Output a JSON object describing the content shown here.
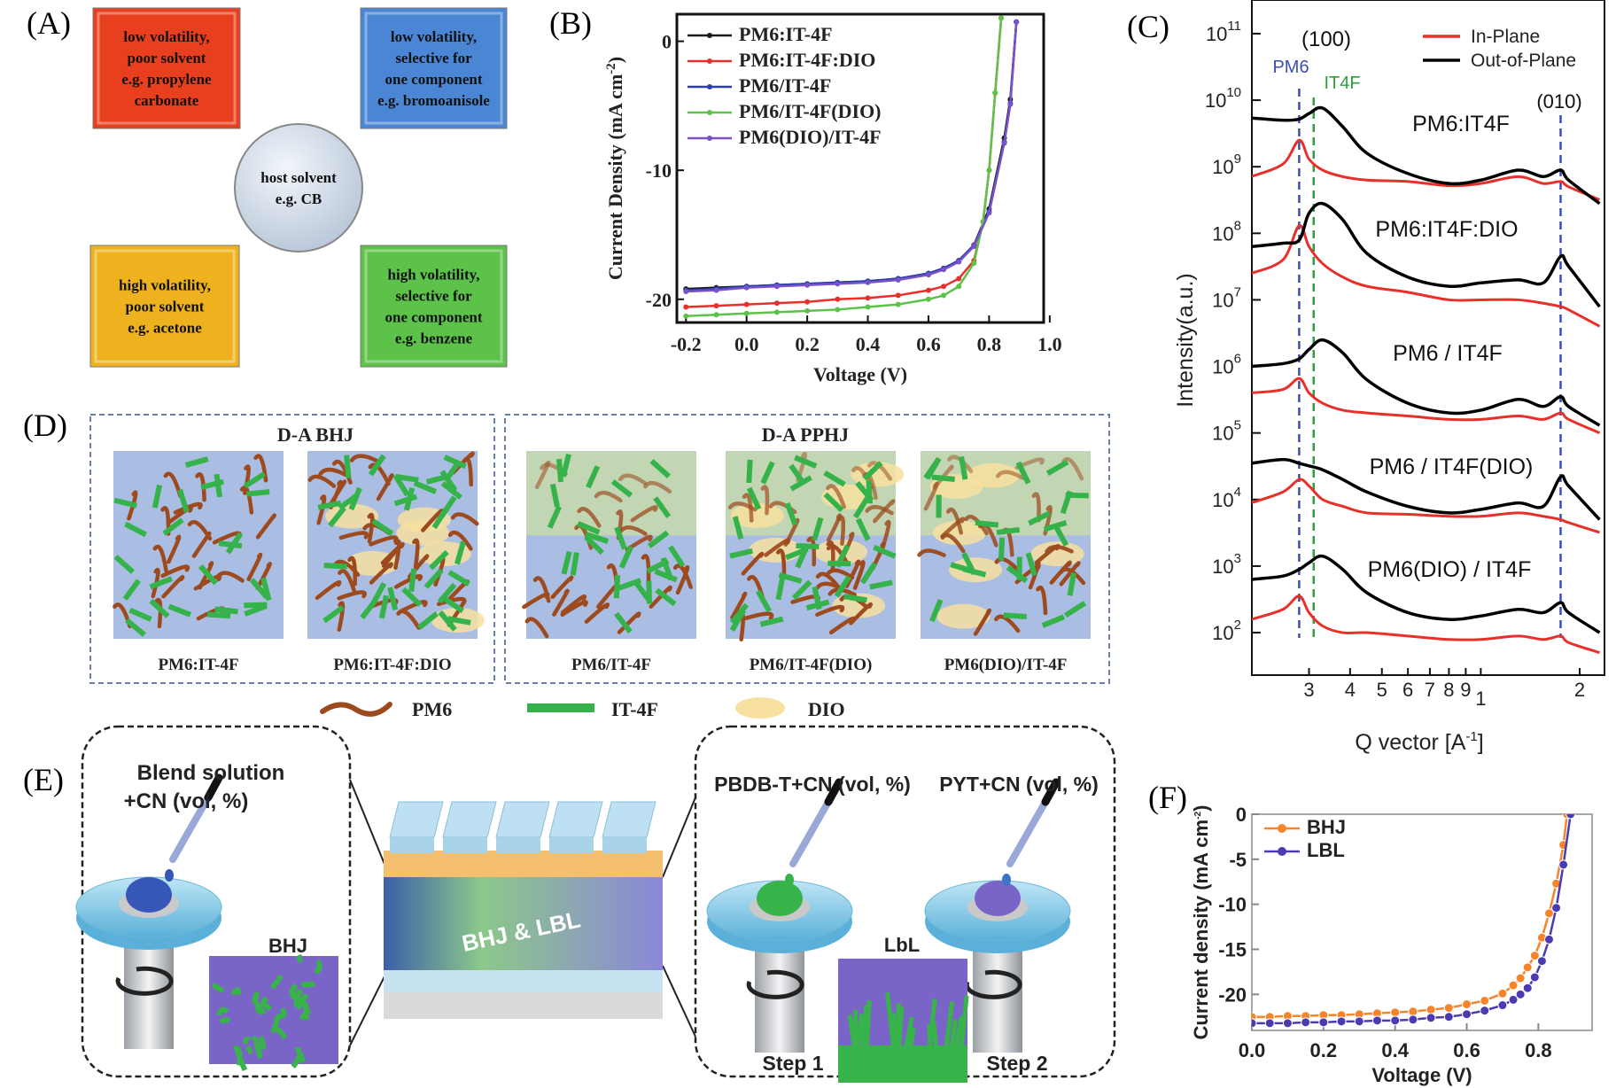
{
  "panels": {
    "a": "(A)",
    "b": "(B)",
    "c": "(C)",
    "d": "(D)",
    "e": "(E)",
    "f": "(F)"
  },
  "panel_a": {
    "boxes": [
      {
        "lines": [
          "low volatility,",
          "poor solvent",
          "e.g. propylene",
          "carbonate"
        ],
        "color": "#e8401e"
      },
      {
        "lines": [
          "low volatility,",
          "selective for",
          "one component",
          "e.g. bromoanisole"
        ],
        "color": "#4a86d4"
      },
      {
        "lines": [
          "high volatility,",
          "poor solvent",
          "e.g. acetone"
        ],
        "color": "#eeb21e"
      },
      {
        "lines": [
          "high volatility,",
          "selective for",
          "one component",
          "e.g. benzene"
        ],
        "color": "#5cc24a"
      }
    ],
    "center": {
      "lines": [
        "host solvent",
        "e.g. CB"
      ]
    }
  },
  "chart_data": [
    {
      "id": "B",
      "type": "line",
      "xlabel": "Voltage (V)",
      "ylabel": "Current Density (mA cm",
      "ylabel_sup": "-2",
      "ylabel_end": ")",
      "xlim": [
        -0.23,
        0.98
      ],
      "ylim": [
        -21.8,
        2.1
      ],
      "xticks": [
        -0.2,
        0.0,
        0.2,
        0.4,
        0.6,
        0.8,
        1.0
      ],
      "xtick_labels": [
        "-0.2",
        "0.0",
        "0.2",
        "0.4",
        "0.6",
        "0.8",
        "1.0"
      ],
      "yticks": [
        0,
        -10,
        -20
      ],
      "ytick_labels": [
        "0",
        "-10",
        "-20"
      ],
      "legend": "top-left",
      "series": [
        {
          "name": "PM6:IT-4F",
          "color": "#1a1a1a",
          "x": [
            -0.2,
            -0.1,
            0,
            0.1,
            0.2,
            0.3,
            0.4,
            0.5,
            0.6,
            0.65,
            0.7,
            0.75,
            0.8,
            0.85,
            0.87,
            0.89
          ],
          "y": [
            -19.2,
            -19.1,
            -19.0,
            -18.9,
            -18.8,
            -18.7,
            -18.6,
            -18.4,
            -18.0,
            -17.6,
            -17.0,
            -15.8,
            -13.0,
            -7.5,
            -4.5,
            1.5
          ]
        },
        {
          "name": "PM6:IT-4F:DIO",
          "color": "#e8302a",
          "x": [
            -0.2,
            -0.1,
            0,
            0.1,
            0.2,
            0.3,
            0.4,
            0.5,
            0.6,
            0.65,
            0.7,
            0.75,
            0.78,
            0.8,
            0.82,
            0.84
          ],
          "y": [
            -20.6,
            -20.5,
            -20.4,
            -20.3,
            -20.2,
            -20.0,
            -19.9,
            -19.7,
            -19.3,
            -19.0,
            -18.4,
            -17.0,
            -14.0,
            -10.0,
            -4.0,
            1.8
          ]
        },
        {
          "name": "PM6/IT-4F",
          "color": "#2b3fb0",
          "x": [
            -0.2,
            -0.1,
            0,
            0.1,
            0.2,
            0.3,
            0.4,
            0.5,
            0.6,
            0.65,
            0.7,
            0.75,
            0.8,
            0.85,
            0.87,
            0.89
          ],
          "y": [
            -19.3,
            -19.2,
            -19.0,
            -18.9,
            -18.8,
            -18.7,
            -18.6,
            -18.4,
            -18.0,
            -17.6,
            -17.0,
            -15.8,
            -13.2,
            -7.8,
            -4.8,
            1.5
          ]
        },
        {
          "name": "PM6/IT-4F(DIO)",
          "color": "#5cc24a",
          "x": [
            -0.2,
            -0.1,
            0,
            0.1,
            0.2,
            0.3,
            0.4,
            0.5,
            0.6,
            0.65,
            0.7,
            0.75,
            0.78,
            0.8,
            0.82,
            0.84
          ],
          "y": [
            -21.3,
            -21.2,
            -21.1,
            -21.0,
            -20.9,
            -20.8,
            -20.6,
            -20.4,
            -20.0,
            -19.7,
            -19.0,
            -17.2,
            -14.0,
            -10.0,
            -4.0,
            1.8
          ]
        },
        {
          "name": "PM6(DIO)/IT-4F",
          "color": "#7a52c8",
          "x": [
            -0.2,
            -0.1,
            0,
            0.1,
            0.2,
            0.3,
            0.4,
            0.5,
            0.6,
            0.65,
            0.7,
            0.75,
            0.8,
            0.85,
            0.87,
            0.89
          ],
          "y": [
            -19.4,
            -19.3,
            -19.1,
            -19.0,
            -18.9,
            -18.8,
            -18.7,
            -18.5,
            -18.1,
            -17.7,
            -17.1,
            -15.9,
            -13.3,
            -7.9,
            -4.9,
            1.5
          ]
        }
      ]
    },
    {
      "id": "C",
      "type": "line",
      "xlabel": "Q vector [A",
      "xlabel_sup": "-1",
      "xlabel_end": "]",
      "ylabel": "Intensity(a.u.)",
      "xscale": "log",
      "yscale": "log",
      "xlim": [
        0.201,
        2.38
      ],
      "ylim": [
        23,
        320000000000.0
      ],
      "xticks": [
        0.3,
        0.4,
        0.5,
        0.6,
        0.7,
        0.8,
        0.9,
        1,
        2
      ],
      "xtick_labels": [
        "3",
        "4",
        "5",
        "6",
        "7",
        "8",
        "9",
        "1",
        "2"
      ],
      "yticks": [
        100.0,
        1000.0,
        10000.0,
        100000.0,
        1000000.0,
        10000000.0,
        100000000.0,
        1000000000.0,
        10000000000.0,
        100000000000.0
      ],
      "ytick_base": "10",
      "ytick_exponents": [
        "2",
        "3",
        "4",
        "5",
        "6",
        "7",
        "8",
        "9",
        "10",
        "11"
      ],
      "legend": "top-right",
      "legend_entries": [
        {
          "name": "In-Plane",
          "color": "#e8302a"
        },
        {
          "name": "Out-of-Plane",
          "color": "#000000"
        }
      ],
      "annotations": [
        {
          "text": "(100)",
          "color": "#111111"
        },
        {
          "text": "PM6",
          "color": "#3b4fb0",
          "q": 0.28
        },
        {
          "text": "IT4F",
          "color": "#2e9e3e",
          "q": 0.31
        },
        {
          "text": "(010)",
          "color": "#111111",
          "q": 1.75
        }
      ],
      "q": [
        0.2,
        0.25,
        0.28,
        0.3,
        0.33,
        0.38,
        0.45,
        0.6,
        0.8,
        1.0,
        1.3,
        1.55,
        1.75,
        1.85,
        2.3
      ],
      "samples": [
        {
          "name": "PM6:IT4F",
          "out_of_plane": [
            5400000000.0,
            5000000000.0,
            5200000000.0,
            6300000000.0,
            7600000000.0,
            4000000000.0,
            1600000000.0,
            790000000.0,
            560000000.0,
            630000000.0,
            890000000.0,
            710000000.0,
            890000000.0,
            630000000.0,
            280000000.0
          ],
          "in_plane": [
            710000000.0,
            1100000000.0,
            2500000000.0,
            1300000000.0,
            890000000.0,
            710000000.0,
            630000000.0,
            600000000.0,
            520000000.0,
            560000000.0,
            710000000.0,
            560000000.0,
            600000000.0,
            500000000.0,
            320000000.0
          ]
        },
        {
          "name": "PM6:IT4F:DIO",
          "out_of_plane": [
            63000000.0,
            71000000.0,
            79000000.0,
            200000000.0,
            280000000.0,
            160000000.0,
            50000000.0,
            22000000.0,
            16000000.0,
            18000000.0,
            20000000.0,
            18000000.0,
            45000000.0,
            32000000.0,
            7900000.0
          ],
          "in_plane": [
            25000000.0,
            40000000.0,
            130000000.0,
            63000000.0,
            35000000.0,
            22000000.0,
            16000000.0,
            13000000.0,
            10000000.0,
            10000000.0,
            10000000.0,
            8900000.0,
            7900000.0,
            7100000.0,
            4000000.0
          ]
        },
        {
          "name": "PM6 / IT4F",
          "out_of_plane": [
            1000000.0,
            1100000.0,
            1300000.0,
            1800000.0,
            2500000.0,
            1600000.0,
            630000.0,
            280000.0,
            200000.0,
            220000.0,
            320000.0,
            250000.0,
            350000.0,
            250000.0,
            130000.0
          ],
          "in_plane": [
            400000.0,
            450000.0,
            660000.0,
            400000.0,
            280000.0,
            220000.0,
            200000.0,
            180000.0,
            160000.0,
            160000.0,
            180000.0,
            160000.0,
            200000.0,
            160000.0,
            100000.0
          ]
        },
        {
          "name": "PM6 / IT4F(DIO)",
          "out_of_plane": [
            35000.0,
            40000.0,
            35000.0,
            32000.0,
            28000.0,
            20000.0,
            13000.0,
            7900.0,
            6300.0,
            7100.0,
            8900.0,
            7900.0,
            22000.0,
            16000.0,
            5000.0
          ],
          "in_plane": [
            8900.0,
            13000.0,
            20000.0,
            16000.0,
            10000.0,
            7900.0,
            6300.0,
            6000.0,
            5600.0,
            5600.0,
            6300.0,
            5600.0,
            5000.0,
            4500.0,
            3200.0
          ]
        },
        {
          "name": "PM6(DIO) / IT4F",
          "out_of_plane": [
            631,
            708,
            891,
            1120,
            1410,
            891,
            398,
            200,
            158,
            178,
            224,
            200,
            282,
            200,
            100
          ],
          "in_plane": [
            158,
            224,
            355,
            200,
            126,
            100,
            100,
            89,
            79,
            79,
            89,
            79,
            89,
            71,
            50
          ]
        }
      ]
    },
    {
      "id": "F",
      "type": "line",
      "xlabel": "Voltage (V)",
      "ylabel": "Current density (mA cm",
      "ylabel_sup": "-2",
      "ylabel_end": ")",
      "xlim": [
        0,
        0.95
      ],
      "ylim": [
        -24,
        0
      ],
      "xticks": [
        0,
        0.2,
        0.4,
        0.6,
        0.8
      ],
      "xtick_labels": [
        "0.0",
        "0.2",
        "0.4",
        "0.6",
        "0.8"
      ],
      "yticks": [
        0,
        -5,
        -10,
        -15,
        -20
      ],
      "ytick_labels": [
        "0",
        "-5",
        "-10",
        "-15",
        "-20"
      ],
      "legend": "top-left",
      "series": [
        {
          "name": "BHJ",
          "color": "#f5842a",
          "x": [
            0,
            0.05,
            0.1,
            0.15,
            0.2,
            0.25,
            0.3,
            0.35,
            0.4,
            0.45,
            0.5,
            0.55,
            0.6,
            0.65,
            0.7,
            0.73,
            0.75,
            0.77,
            0.79,
            0.81,
            0.83,
            0.85,
            0.87,
            0.88
          ],
          "y": [
            -22.5,
            -22.5,
            -22.4,
            -22.4,
            -22.3,
            -22.3,
            -22.2,
            -22.1,
            -22.0,
            -21.9,
            -21.7,
            -21.5,
            -21.1,
            -20.7,
            -19.9,
            -19.0,
            -18.2,
            -17.0,
            -15.7,
            -13.7,
            -11.0,
            -7.7,
            -3.4,
            0
          ]
        },
        {
          "name": "LBL",
          "color": "#4a3cb0",
          "x": [
            0,
            0.05,
            0.1,
            0.15,
            0.2,
            0.25,
            0.3,
            0.35,
            0.4,
            0.45,
            0.5,
            0.55,
            0.6,
            0.65,
            0.7,
            0.73,
            0.75,
            0.77,
            0.79,
            0.81,
            0.83,
            0.85,
            0.87,
            0.89
          ],
          "y": [
            -23.2,
            -23.2,
            -23.2,
            -23.1,
            -23.1,
            -23.0,
            -23.0,
            -22.9,
            -22.9,
            -22.8,
            -22.6,
            -22.5,
            -22.2,
            -21.8,
            -21.2,
            -20.6,
            -20.0,
            -19.3,
            -18.1,
            -16.3,
            -13.9,
            -10.4,
            -5.6,
            0
          ]
        }
      ]
    }
  ],
  "panel_d": {
    "group_titles": [
      "D-A BHJ",
      "D-A PPHJ"
    ],
    "morphologies": [
      {
        "label": "PM6:IT-4F",
        "dio": false
      },
      {
        "label": "PM6:IT-4F:DIO",
        "dio": true
      },
      {
        "label": "PM6/IT-4F",
        "dio": false
      },
      {
        "label": "PM6/IT-4F(DIO)",
        "dio": true
      },
      {
        "label": "PM6(DIO)/IT-4F",
        "dio": true
      }
    ],
    "legend": [
      {
        "label": "PM6",
        "color": "#9c4a1e"
      },
      {
        "label": "IT-4F",
        "color": "#35b34a"
      },
      {
        "label": "DIO",
        "color": "#f7e0a0"
      }
    ]
  },
  "panel_e": {
    "left_title": [
      "Blend solution",
      "+CN (vol, %)"
    ],
    "bhj_label": "BHJ",
    "device_label": "BHJ & LBL",
    "step1_title": "PBDB-T+CN (vol, %)",
    "step2_title": "PYT+CN (vol, %)",
    "lbl_label": "LbL",
    "step1": "Step 1",
    "step2": "Step 2"
  }
}
